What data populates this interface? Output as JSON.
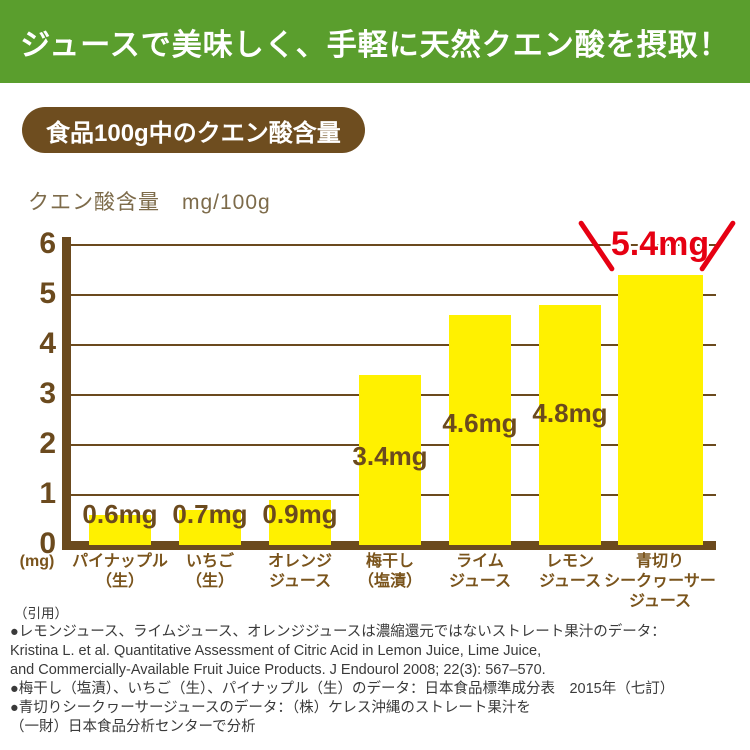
{
  "banner": {
    "title": "ジュースで美味しく、手軽に天然クエン酸を摂取！"
  },
  "section_badge": "食品100g中のクエン酸含量",
  "chart_header": {
    "axis_title": "クエン酸含量　mg/100g"
  },
  "chart_data": {
    "type": "bar",
    "title": "食品100g中のクエン酸含量",
    "ylabel": "クエン酸含量 mg/100g",
    "unit_label": "(mg)",
    "ylim": [
      0,
      6
    ],
    "y_ticks": [
      0,
      1,
      2,
      3,
      4,
      5,
      6
    ],
    "grid": true,
    "categories": [
      "パイナップル\n（生）",
      "いちご\n（生）",
      "オレンジ\nジュース",
      "梅干し\n（塩漬）",
      "ライム\nジュース",
      "レモン\nジュース",
      "青切り\nシークヮーサー\nジュース"
    ],
    "values": [
      0.6,
      0.7,
      0.9,
      3.4,
      4.6,
      4.8,
      5.4
    ],
    "value_labels": [
      "0.6mg",
      "0.7mg",
      "0.9mg",
      "3.4mg",
      "4.6mg",
      "4.8mg",
      "5.4mg"
    ],
    "highlight_index": 6,
    "bar_color": "#fff100",
    "highlight_label_color": "#e60012"
  },
  "footnotes": {
    "lead": "（引用）",
    "lines": [
      "●レモンジュース、ライムジュース、オレンジジュースは濃縮還元ではないストレート果汁のデータ：",
      "Kristina L. et al. Quantitative Assessment of Citric Acid in Lemon Juice, Lime Juice,",
      "and Commercially-Available Fruit Juice Products.  J Endourol 2008; 22(3): 567–570.",
      "●梅干し（塩漬）、いちご（生）、パイナップル（生）のデータ：日本食品標準成分表　2015年（七訂）",
      "●青切りシークヮーサージュースのデータ：（株）ケレス沖縄のストレート果汁を",
      "（一財）日本食品分析センターで分析"
    ]
  },
  "colors": {
    "banner_green": "#5a9e2d",
    "axis_brown": "#6b4a1e",
    "label_brown": "#7a541c",
    "badge_brown": "#6e4d1f",
    "bar_yellow": "#fff100",
    "accent_red": "#e60012",
    "footnote_gray": "#3a3a3a"
  }
}
